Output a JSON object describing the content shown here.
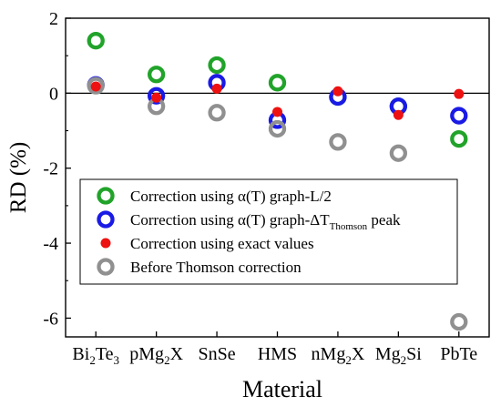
{
  "chart_data": {
    "type": "scatter",
    "xlabel": "Material",
    "ylabel": "RD (%)",
    "ylim": [
      -6.5,
      2
    ],
    "yticks": [
      2,
      0,
      -2,
      -4,
      -6
    ],
    "categories": [
      {
        "base": "Bi",
        "sub1": "2",
        "mid": "Te",
        "sub2": "3",
        "tail": ""
      },
      {
        "base": "pMg",
        "sub1": "2",
        "mid": "X",
        "sub2": "",
        "tail": ""
      },
      {
        "base": "SnSe",
        "sub1": "",
        "mid": "",
        "sub2": "",
        "tail": ""
      },
      {
        "base": "HMS",
        "sub1": "",
        "mid": "",
        "sub2": "",
        "tail": ""
      },
      {
        "base": "nMg",
        "sub1": "2",
        "mid": "X",
        "sub2": "",
        "tail": ""
      },
      {
        "base": "Mg",
        "sub1": "2",
        "mid": "Si",
        "sub2": "",
        "tail": ""
      },
      {
        "base": "PbTe",
        "sub1": "",
        "mid": "",
        "sub2": "",
        "tail": ""
      }
    ],
    "zero_line": true,
    "legend_position": "lower-left",
    "series": [
      {
        "name": "Correction using α(T) graph-L/2",
        "legend_main": "Correction using α(T) graph-L/2",
        "legend_sub": "",
        "legend_tail": "",
        "marker": "ring",
        "color": "#21a32a",
        "values": [
          1.4,
          0.5,
          0.75,
          0.28,
          -0.1,
          -0.35,
          -1.22
        ]
      },
      {
        "name": "Correction using α(T) graph-ΔTThomson peak",
        "legend_main": "Correction using α(T) graph-ΔT",
        "legend_sub": "Thomson",
        "legend_tail": " peak",
        "marker": "ring",
        "color": "#1a1ae6",
        "values": [
          0.22,
          -0.07,
          0.28,
          -0.72,
          -0.1,
          -0.35,
          -0.6
        ]
      },
      {
        "name": "Correction using exact values",
        "legend_main": "Correction using exact values",
        "legend_sub": "",
        "legend_tail": "",
        "marker": "dot",
        "color": "#ee1111",
        "values": [
          0.18,
          -0.12,
          0.12,
          -0.5,
          0.05,
          -0.58,
          -0.02
        ]
      },
      {
        "name": "Before Thomson correction",
        "legend_main": "Before Thomson correction",
        "legend_sub": "",
        "legend_tail": "",
        "marker": "ring",
        "color": "#909090",
        "values": [
          0.2,
          -0.35,
          -0.52,
          -0.95,
          -1.3,
          -1.6,
          -6.1
        ]
      }
    ]
  }
}
